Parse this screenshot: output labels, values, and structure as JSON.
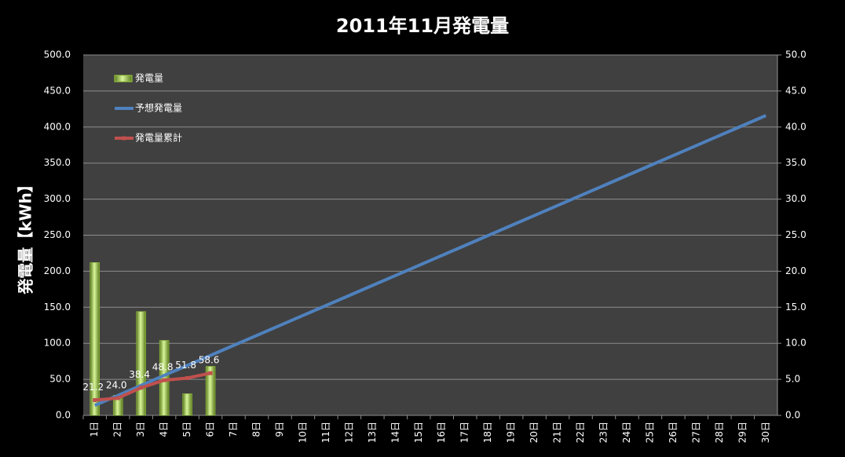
{
  "chart_data": {
    "type": "bar",
    "title": "2011年11月発電量",
    "ylabel": "発電量【kWh】",
    "categories": [
      "1日",
      "2日",
      "3日",
      "4日",
      "5日",
      "6日",
      "7日",
      "8日",
      "9日",
      "10日",
      "11日",
      "12日",
      "13日",
      "14日",
      "15日",
      "16日",
      "17日",
      "18日",
      "19日",
      "20日",
      "21日",
      "22日",
      "23日",
      "24日",
      "25日",
      "26日",
      "27日",
      "28日",
      "29日",
      "30日"
    ],
    "series": [
      {
        "name": "発電量",
        "type": "bar",
        "axis": "y2",
        "color": "#9ccf3c",
        "values": [
          21.2,
          2.8,
          14.4,
          10.4,
          3.0,
          6.8,
          null,
          null,
          null,
          null,
          null,
          null,
          null,
          null,
          null,
          null,
          null,
          null,
          null,
          null,
          null,
          null,
          null,
          null,
          null,
          null,
          null,
          null,
          null,
          null
        ]
      },
      {
        "name": "予想発電量",
        "type": "line",
        "color": "#4f81bd",
        "values": [
          13.9,
          27.7,
          41.6,
          55.5,
          69.3,
          83.2,
          97.1,
          110.9,
          124.8,
          138.7,
          152.5,
          166.4,
          180.3,
          194.1,
          208.0,
          221.9,
          235.7,
          249.6,
          263.5,
          277.3,
          291.2,
          305.1,
          318.9,
          332.8,
          346.7,
          360.5,
          374.4,
          388.3,
          402.1,
          416.0
        ]
      },
      {
        "name": "発電量累計",
        "type": "line",
        "color": "#c0504d",
        "markers": true,
        "values": [
          21.2,
          24.0,
          38.4,
          48.8,
          51.8,
          58.6,
          null,
          null,
          null,
          null,
          null,
          null,
          null,
          null,
          null,
          null,
          null,
          null,
          null,
          null,
          null,
          null,
          null,
          null,
          null,
          null,
          null,
          null,
          null,
          null
        ],
        "value_labels": [
          "21.2",
          "24.0",
          "38.4",
          "48.8",
          "51.8",
          "58.6",
          null,
          null,
          null,
          null,
          null,
          null,
          null,
          null,
          null,
          null,
          null,
          null,
          null,
          null,
          null,
          null,
          null,
          null,
          null,
          null,
          null,
          null,
          null,
          null
        ]
      }
    ],
    "ylim": [
      0,
      500
    ],
    "yticks": [
      {
        "value": 0,
        "label": "0.0"
      },
      {
        "value": 50,
        "label": "50.0"
      },
      {
        "value": 100,
        "label": "100.0"
      },
      {
        "value": 150,
        "label": "150.0"
      },
      {
        "value": 200,
        "label": "200.0"
      },
      {
        "value": 250,
        "label": "250.0"
      },
      {
        "value": 300,
        "label": "300.0"
      },
      {
        "value": 350,
        "label": "350.0"
      },
      {
        "value": 400,
        "label": "400.0"
      },
      {
        "value": 450,
        "label": "450.0"
      },
      {
        "value": 500,
        "label": "500.0"
      }
    ],
    "y2lim": [
      0,
      50
    ],
    "y2ticks": [
      {
        "value": 0,
        "label": "0.0"
      },
      {
        "value": 5,
        "label": "5.0"
      },
      {
        "value": 10,
        "label": "10.0"
      },
      {
        "value": 15,
        "label": "15.0"
      },
      {
        "value": 20,
        "label": "20.0"
      },
      {
        "value": 25,
        "label": "25.0"
      },
      {
        "value": 30,
        "label": "30.0"
      },
      {
        "value": 35,
        "label": "35.0"
      },
      {
        "value": 40,
        "label": "40.0"
      },
      {
        "value": 45,
        "label": "45.0"
      },
      {
        "value": 50,
        "label": "50.0"
      }
    ],
    "grid": true,
    "legend": "upper left"
  }
}
